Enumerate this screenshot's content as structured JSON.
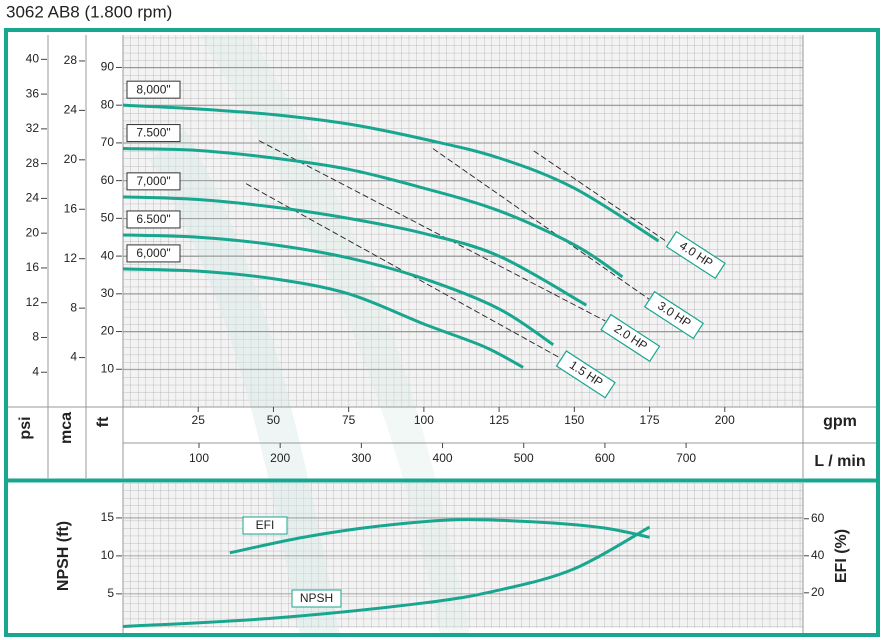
{
  "chart_data": [
    {
      "type": "line",
      "title": "3062 AB8 (1.800 rpm)",
      "x_label": "gpm",
      "xlim": [
        0,
        226
      ],
      "xticks": [
        25,
        50,
        75,
        100,
        125,
        150,
        175,
        200
      ],
      "x2_label": "L / min",
      "x2lim": [
        6.4,
        844
      ],
      "x2ticks": [
        100,
        200,
        300,
        400,
        500,
        600,
        700
      ],
      "y_label": "ft",
      "ylim": [
        0,
        98.6
      ],
      "yticks": [
        10,
        20,
        30,
        40,
        50,
        60,
        70,
        80,
        90
      ],
      "axes": [
        {
          "label": "psi",
          "lim": [
            0,
            42.8
          ],
          "ticks": [
            4,
            8,
            12,
            16,
            20,
            24,
            28,
            32,
            36,
            40
          ]
        },
        {
          "label": "mca",
          "lim": [
            0,
            30.1
          ],
          "ticks": [
            4,
            8,
            12,
            16,
            20,
            24,
            28
          ]
        }
      ],
      "grid": true,
      "series": [
        {
          "name": "8,000\"",
          "color": "#19a68f",
          "x": [
            0,
            25,
            50,
            75,
            100,
            125,
            150,
            178
          ],
          "values": [
            80,
            79,
            77.5,
            75,
            71,
            66,
            58,
            44
          ]
        },
        {
          "name": "7.500\"",
          "color": "#19a68f",
          "x": [
            0,
            25,
            50,
            75,
            100,
            125,
            150,
            166
          ],
          "values": [
            68.5,
            68,
            66,
            63,
            58,
            52,
            43,
            34.5
          ]
        },
        {
          "name": "7,000\"",
          "color": "#19a68f",
          "x": [
            0,
            25,
            50,
            75,
            100,
            125,
            154
          ],
          "values": [
            55.7,
            55,
            53,
            50,
            46,
            40,
            27
          ]
        },
        {
          "name": "6.500\"",
          "color": "#19a68f",
          "x": [
            0,
            25,
            50,
            75,
            100,
            125,
            143
          ],
          "values": [
            45.6,
            45,
            43,
            39.5,
            34,
            26,
            16.5
          ]
        },
        {
          "name": "6,000\"",
          "color": "#19a68f",
          "x": [
            0,
            25,
            50,
            75,
            100,
            120,
            133
          ],
          "values": [
            36.6,
            36,
            34,
            30,
            22,
            16,
            10.5
          ]
        }
      ],
      "power_lines": [
        {
          "name": "4.0 HP",
          "x": [
            136.5,
            180.4
          ],
          "values": [
            67.9,
            44
          ]
        },
        {
          "name": "3.0 HP",
          "x": [
            103,
            174.8
          ],
          "values": [
            68.5,
            28.6
          ]
        },
        {
          "name": "2.0 HP",
          "x": [
            45.2,
            160.3
          ],
          "values": [
            70.6,
            22.8
          ]
        },
        {
          "name": "1.5 HP",
          "x": [
            40.9,
            145.5
          ],
          "values": [
            59.2,
            12.9
          ]
        }
      ]
    },
    {
      "type": "line",
      "xlim": [
        0,
        226
      ],
      "y_label": "NPSH (ft)",
      "ylim": [
        0.5,
        19.6
      ],
      "yticks": [
        5,
        10,
        15
      ],
      "y2_label": "EFI (%)",
      "y2lim": [
        1,
        79.3
      ],
      "y2ticks": [
        20,
        40,
        60
      ],
      "grid": true,
      "series": [
        {
          "name": "EFI",
          "axis": "y2",
          "color": "#19a68f",
          "x": [
            35.5,
            60,
            85,
            112,
            140,
            160,
            175
          ],
          "values": [
            41.6,
            50,
            56,
            59.5,
            58,
            55,
            50
          ]
        },
        {
          "name": "NPSH",
          "color": "#19a68f",
          "x": [
            0,
            50,
            100,
            125,
            150,
            175
          ],
          "values": [
            0.7,
            1.8,
            3.8,
            5.5,
            8.3,
            13.8
          ]
        }
      ]
    }
  ]
}
